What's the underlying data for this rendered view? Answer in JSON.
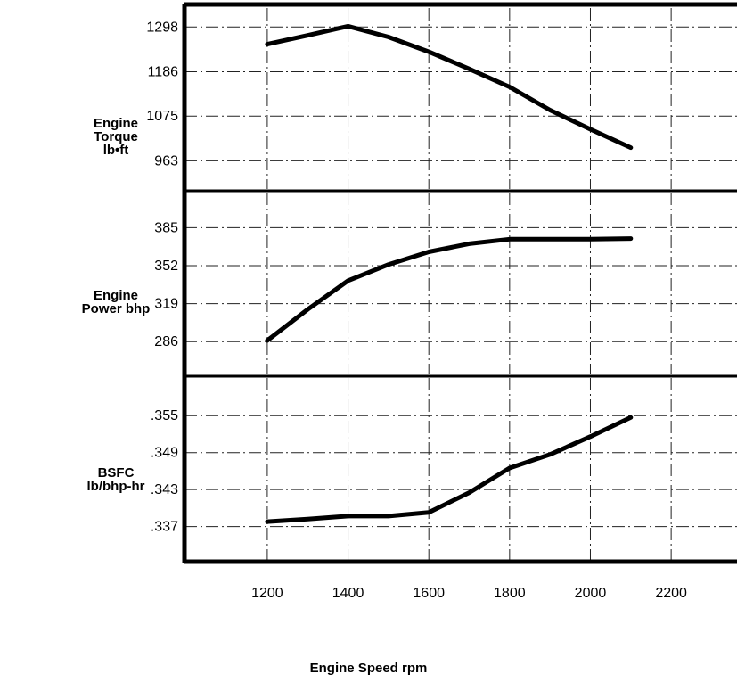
{
  "chart_data": [
    {
      "type": "line",
      "panel": "torque",
      "ylabel_lines": [
        "Engine",
        "Torque",
        "lb•ft"
      ],
      "yticks": [
        "1298",
        "1186",
        "1075",
        "963"
      ],
      "ytick_values": [
        1298,
        1186,
        1075,
        963
      ],
      "ylim": [
        888,
        1350
      ],
      "x": [
        1200,
        1300,
        1400,
        1500,
        1600,
        1700,
        1800,
        1900,
        2000,
        2100
      ],
      "values": [
        1255,
        1277,
        1300,
        1273,
        1236,
        1193,
        1148,
        1090,
        1042,
        996
      ],
      "grid": true
    },
    {
      "type": "line",
      "panel": "power",
      "ylabel_lines": [
        "Engine",
        "Power bhp"
      ],
      "yticks": [
        "385",
        "352",
        "319",
        "286"
      ],
      "ytick_values": [
        385,
        352,
        319,
        286
      ],
      "ylim": [
        256,
        417
      ],
      "x": [
        1200,
        1300,
        1400,
        1500,
        1600,
        1700,
        1800,
        1900,
        2000,
        2100
      ],
      "values": [
        287,
        314,
        339,
        353,
        364,
        371,
        375,
        375,
        375,
        375.5
      ],
      "grid": true
    },
    {
      "type": "line",
      "panel": "bsfc",
      "ylabel_lines": [
        "BSFC",
        "lb/bhp-hr"
      ],
      "yticks": [
        ".355",
        ".349",
        ".343",
        ".337"
      ],
      "ytick_values": [
        0.355,
        0.349,
        0.343,
        0.337
      ],
      "ylim": [
        0.3313,
        0.3614
      ],
      "x": [
        1200,
        1300,
        1400,
        1500,
        1600,
        1700,
        1800,
        1900,
        2000,
        2100
      ],
      "values": [
        0.3378,
        0.3382,
        0.3387,
        0.3387,
        0.3393,
        0.3425,
        0.3465,
        0.3487,
        0.3516,
        0.3547
      ],
      "grid": true
    }
  ],
  "x_axis": {
    "ticks": [
      "1200",
      "1400",
      "1600",
      "1800",
      "2000",
      "2200"
    ],
    "tick_values": [
      1200,
      1400,
      1600,
      1800,
      2000,
      2200
    ],
    "xlim": [
      995,
      2363
    ],
    "title": "Engine Speed rpm"
  }
}
